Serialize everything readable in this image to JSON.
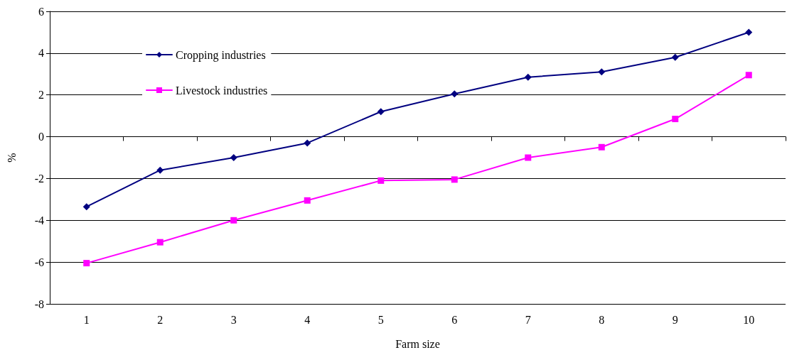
{
  "chart_data": {
    "type": "line",
    "xlabel": "Farm size",
    "ylabel": "%",
    "categories": [
      "1",
      "2",
      "3",
      "4",
      "5",
      "6",
      "7",
      "8",
      "9",
      "10"
    ],
    "series": [
      {
        "name": "Cropping industries",
        "color": "#000080",
        "marker": "diamond",
        "values": [
          -3.35,
          -1.6,
          -1,
          -0.3,
          1.2,
          2.05,
          2.85,
          3.1,
          3.8,
          5
        ]
      },
      {
        "name": "Livestock industries",
        "color": "#ff00ff",
        "marker": "square",
        "values": [
          -6.05,
          -5.05,
          -4,
          -3.05,
          -2.1,
          -2.05,
          -1,
          -0.5,
          0.85,
          2.95
        ]
      }
    ],
    "ylim": [
      -8,
      6
    ],
    "yticks": [
      -8,
      -6,
      -4,
      -2,
      0,
      2,
      4,
      6
    ],
    "grid": "y",
    "legend": "top left",
    "line_style": "solid"
  }
}
